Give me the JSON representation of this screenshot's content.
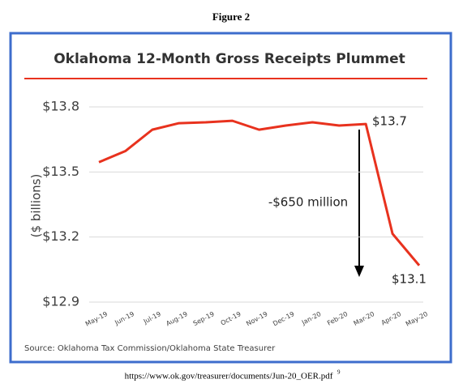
{
  "figure_label": "Figure 2",
  "caption": "https://www.ok.gov/treasurer/documents/Jun-20_OER.pdf",
  "footnote_marker": "9",
  "chart_data": {
    "type": "line",
    "title": "Oklahoma 12-Month Gross Receipts Plummet",
    "y_label": "($ billions)",
    "source": "Source: Oklahoma Tax Commission/Oklahoma State Treasurer",
    "categories": [
      "May-19",
      "Jun-19",
      "Jul-19",
      "Aug-19",
      "Sep-19",
      "Oct-19",
      "Nov-19",
      "Dec-19",
      "Jan-20",
      "Feb-20",
      "Mar-20",
      "Apr-20",
      "May-20"
    ],
    "series": [
      {
        "name": "Gross Receipts",
        "color": "#e8321e",
        "values": [
          13.545,
          13.597,
          13.695,
          13.725,
          13.729,
          13.736,
          13.695,
          13.714,
          13.729,
          13.714,
          13.721,
          13.215,
          13.069
        ]
      }
    ],
    "ylim": [
      12.9,
      13.8
    ],
    "yticks": [
      {
        "value": 12.9,
        "label": "$12.9"
      },
      {
        "value": 13.2,
        "label": "$13.2"
      },
      {
        "value": 13.5,
        "label": "$13.5"
      },
      {
        "value": 13.8,
        "label": "$13.8"
      }
    ],
    "grid": true,
    "annotations": [
      "$13.7",
      "-$650 million",
      "$13.1"
    ]
  }
}
